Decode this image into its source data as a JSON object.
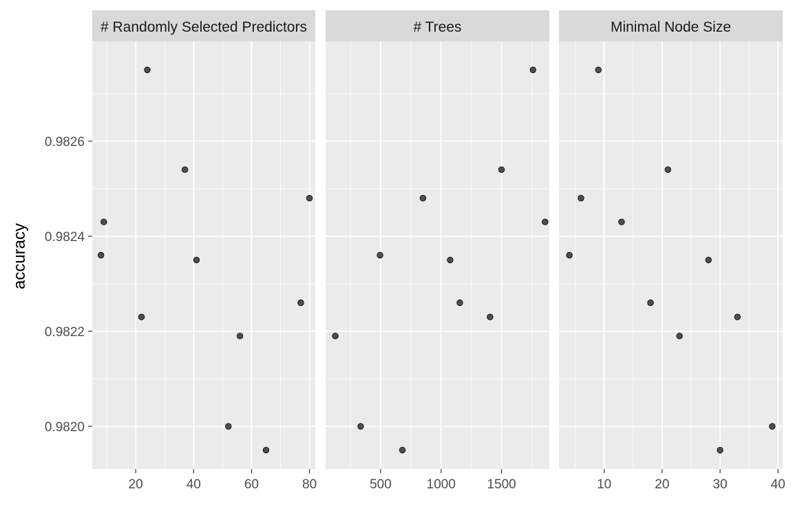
{
  "chart_data": {
    "type": "scatter",
    "ylabel": "accuracy",
    "xlabel": "",
    "grid": true,
    "y_ticks": [
      0.982,
      0.9822,
      0.9824,
      0.9826
    ],
    "y_tick_labels": [
      "0.9820",
      "0.9822",
      "0.9824",
      "0.9826"
    ],
    "ylim": [
      0.98191,
      0.98281
    ],
    "panel_background": "#ebebeb",
    "strip_background": "#d9d9d9",
    "point_color": "#333333",
    "panels": [
      {
        "title": "# Randomly Selected Predictors",
        "xlim": [
          5,
          82
        ],
        "x_ticks": [
          20,
          40,
          60,
          80
        ],
        "x_tick_labels": [
          "20",
          "40",
          "60",
          "80"
        ],
        "points": [
          {
            "x": 24,
            "y": 0.98275
          },
          {
            "x": 37,
            "y": 0.98254
          },
          {
            "x": 80,
            "y": 0.98248
          },
          {
            "x": 9,
            "y": 0.98243
          },
          {
            "x": 8,
            "y": 0.98236
          },
          {
            "x": 41,
            "y": 0.98235
          },
          {
            "x": 77,
            "y": 0.98226
          },
          {
            "x": 22,
            "y": 0.98223
          },
          {
            "x": 56,
            "y": 0.98219
          },
          {
            "x": 52,
            "y": 0.982
          },
          {
            "x": 65,
            "y": 0.98195
          }
        ]
      },
      {
        "title": "# Trees",
        "xlim": [
          45,
          1895
        ],
        "x_ticks": [
          500,
          1000,
          1500
        ],
        "x_tick_labels": [
          "500",
          "1000",
          "1500"
        ],
        "points": [
          {
            "x": 1760,
            "y": 0.98275
          },
          {
            "x": 1500,
            "y": 0.98254
          },
          {
            "x": 850,
            "y": 0.98248
          },
          {
            "x": 1860,
            "y": 0.98243
          },
          {
            "x": 495,
            "y": 0.98236
          },
          {
            "x": 1075,
            "y": 0.98235
          },
          {
            "x": 1155,
            "y": 0.98226
          },
          {
            "x": 1405,
            "y": 0.98223
          },
          {
            "x": 125,
            "y": 0.98219
          },
          {
            "x": 335,
            "y": 0.982
          },
          {
            "x": 680,
            "y": 0.98195
          }
        ]
      },
      {
        "title": "Minimal Node Size",
        "xlim": [
          2.2,
          40.8
        ],
        "x_ticks": [
          10,
          20,
          30,
          40
        ],
        "x_tick_labels": [
          "10",
          "20",
          "30",
          "40"
        ],
        "points": [
          {
            "x": 9,
            "y": 0.98275
          },
          {
            "x": 21,
            "y": 0.98254
          },
          {
            "x": 6,
            "y": 0.98248
          },
          {
            "x": 13,
            "y": 0.98243
          },
          {
            "x": 4,
            "y": 0.98236
          },
          {
            "x": 28,
            "y": 0.98235
          },
          {
            "x": 18,
            "y": 0.98226
          },
          {
            "x": 33,
            "y": 0.98223
          },
          {
            "x": 23,
            "y": 0.98219
          },
          {
            "x": 39,
            "y": 0.982
          },
          {
            "x": 30,
            "y": 0.98195
          }
        ]
      }
    ]
  }
}
